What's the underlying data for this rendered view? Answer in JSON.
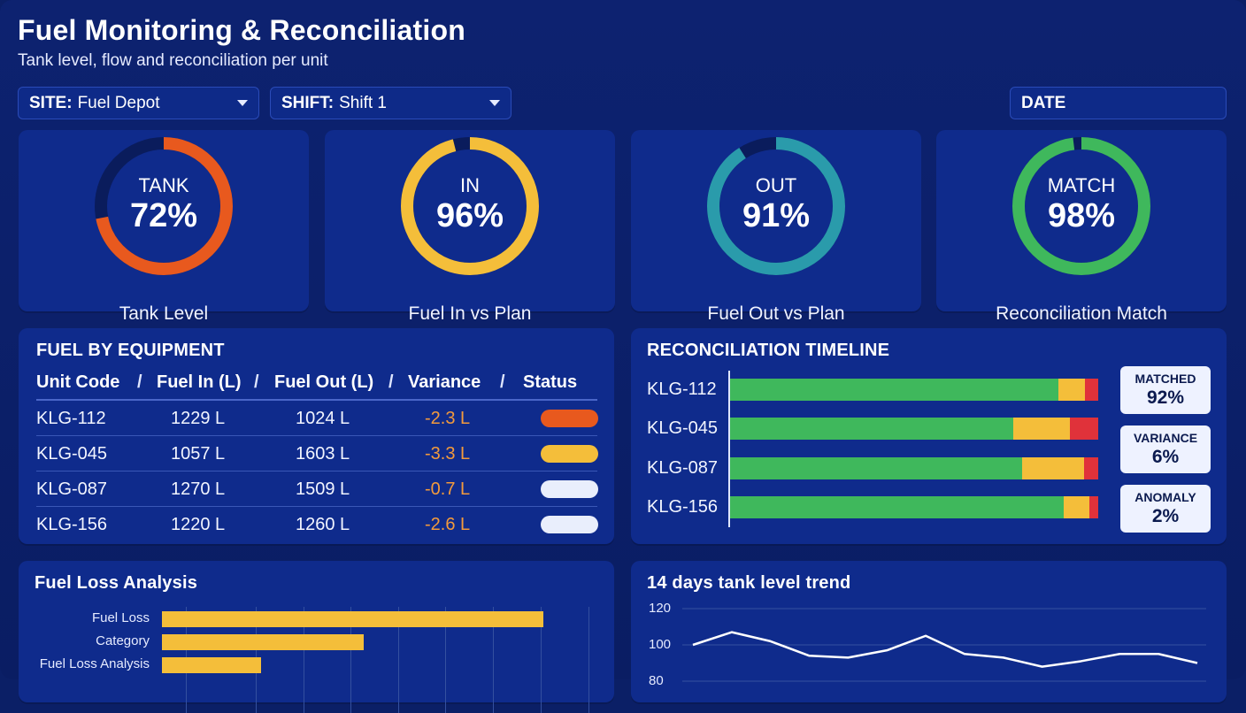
{
  "header": {
    "title": "Fuel Monitoring & Reconciliation",
    "subtitle": "Tank level, flow and reconciliation per unit"
  },
  "filters": {
    "site_key": "SITE:",
    "site_value": "Fuel Depot",
    "shift_key": "SHIFT:",
    "shift_value": "Shift 1",
    "date_key": "DATE"
  },
  "kpis": [
    {
      "label": "TANK",
      "value": "72%",
      "fraction": 0.72,
      "title": "Tank Level",
      "color": "#e8591e"
    },
    {
      "label": "IN",
      "value": "96%",
      "fraction": 0.96,
      "title": "Fuel In vs Plan",
      "color": "#f4be3a"
    },
    {
      "label": "OUT",
      "value": "91%",
      "fraction": 0.91,
      "title": "Fuel Out vs Plan",
      "color": "#2a9bab"
    },
    {
      "label": "MATCH",
      "value": "98%",
      "fraction": 0.98,
      "title": "Reconciliation Match",
      "color": "#3fb85c"
    }
  ],
  "equipment": {
    "title": "FUEL BY EQUIPMENT",
    "columns": [
      "Unit Code",
      "Fuel In (L)",
      "Fuel Out (L)",
      "Variance",
      "Status"
    ],
    "separator": "/",
    "rows": [
      {
        "unit": "KLG-112",
        "fuel_in": "1229 L",
        "fuel_out": "1024 L",
        "variance": "-2.3 L",
        "status_color": "#e8591e"
      },
      {
        "unit": "KLG-045",
        "fuel_in": "1057 L",
        "fuel_out": "1603 L",
        "variance": "-3.3 L",
        "status_color": "#f4be3a"
      },
      {
        "unit": "KLG-087",
        "fuel_in": "1270 L",
        "fuel_out": "1509 L",
        "variance": "-0.7 L",
        "status_color": "#e9eefc"
      },
      {
        "unit": "KLG-156",
        "fuel_in": "1220 L",
        "fuel_out": "1260 L",
        "variance": "-2.6 L",
        "status_color": "#e9eefc"
      }
    ]
  },
  "timeline": {
    "title": "RECONCILIATION TIMELINE",
    "colors": {
      "matched": "#3fb85c",
      "variance": "#f4be3a",
      "anomaly": "#e0323a"
    },
    "rows": [
      {
        "unit": "KLG-112",
        "matched": 0.893,
        "variance": 0.072,
        "anomaly": 0.035
      },
      {
        "unit": "KLG-045",
        "matched": 0.769,
        "variance": 0.154,
        "anomaly": 0.077
      },
      {
        "unit": "KLG-087",
        "matched": 0.793,
        "variance": 0.168,
        "anomaly": 0.039
      },
      {
        "unit": "KLG-156",
        "matched": 0.906,
        "variance": 0.07,
        "anomaly": 0.024
      }
    ],
    "badges": [
      {
        "label": "MATCHED",
        "value": "92%"
      },
      {
        "label": "VARIANCE",
        "value": "6%"
      },
      {
        "label": "ANOMALY",
        "value": "2%"
      }
    ]
  },
  "fuel_loss": {
    "title": "Fuel Loss Analysis",
    "bar_color": "#f4be3a"
  },
  "trend": {
    "title": "14 days tank level trend",
    "line_color": "#ffffff"
  },
  "chart_data": [
    {
      "type": "bar",
      "orientation": "horizontal",
      "title": "Fuel Loss Analysis",
      "categories": [
        "Fuel Loss",
        "Category",
        "Fuel Loss Analysis"
      ],
      "values": [
        100,
        53,
        26
      ],
      "grid": true
    },
    {
      "type": "line",
      "title": "14 days tank level trend",
      "x": [
        1,
        2,
        3,
        4,
        5,
        6,
        7,
        8,
        9,
        10,
        11,
        12,
        13,
        14
      ],
      "values": [
        100,
        107,
        102,
        94,
        93,
        97,
        105,
        95,
        93,
        88,
        91,
        95,
        95,
        90
      ],
      "yticks": [
        120,
        100,
        80
      ],
      "ylim": [
        80,
        120
      ],
      "grid": true
    }
  ]
}
